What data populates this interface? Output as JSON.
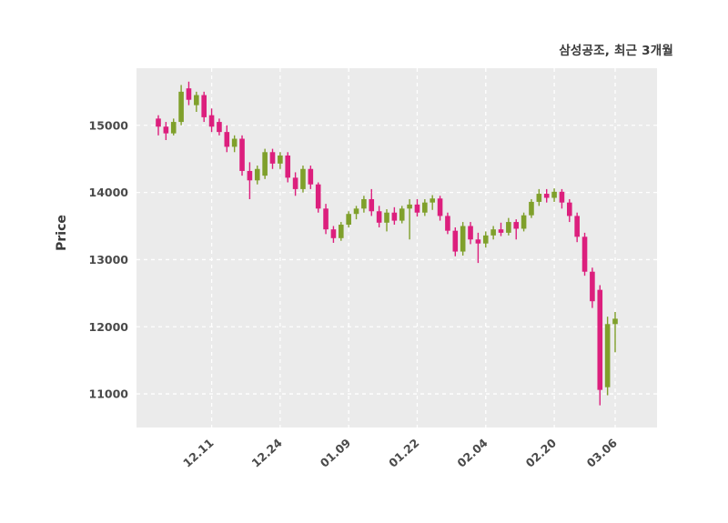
{
  "chart_data": {
    "type": "candlestick",
    "title": "삼성공조, 최근 3개월",
    "ylabel": "Price",
    "yticks": [
      11000,
      12000,
      13000,
      14000,
      15000
    ],
    "ylim": [
      10500,
      15850
    ],
    "xticks": [
      {
        "index": 7,
        "label": "12.11"
      },
      {
        "index": 16,
        "label": "12.24"
      },
      {
        "index": 25,
        "label": "01.09"
      },
      {
        "index": 34,
        "label": "01.22"
      },
      {
        "index": 43,
        "label": "02.04"
      },
      {
        "index": 52,
        "label": "02.20"
      },
      {
        "index": 60,
        "label": "03.06"
      }
    ],
    "colors": {
      "up": "#7fa02b",
      "down": "#dc1f7d",
      "plot_background": "#ebebeb",
      "grid": "#ffffff",
      "figure_background": "#ffffff"
    },
    "grid": {
      "visible": true,
      "style": "dashed"
    },
    "candles": [
      [
        15100,
        15150,
        14850,
        14980
      ],
      [
        14980,
        15050,
        14780,
        14880
      ],
      [
        14880,
        15100,
        14850,
        15050
      ],
      [
        15050,
        15600,
        15000,
        15500
      ],
      [
        15550,
        15650,
        15300,
        15380
      ],
      [
        15300,
        15500,
        15200,
        15450
      ],
      [
        15450,
        15500,
        15050,
        15120
      ],
      [
        15150,
        15250,
        14900,
        14980
      ],
      [
        15050,
        15100,
        14850,
        14900
      ],
      [
        14900,
        15000,
        14600,
        14680
      ],
      [
        14680,
        14850,
        14600,
        14800
      ],
      [
        14800,
        14850,
        14250,
        14320
      ],
      [
        14320,
        14450,
        13900,
        14180
      ],
      [
        14180,
        14400,
        14120,
        14350
      ],
      [
        14250,
        14650,
        14200,
        14600
      ],
      [
        14600,
        14650,
        14350,
        14430
      ],
      [
        14430,
        14600,
        14350,
        14550
      ],
      [
        14550,
        14600,
        14150,
        14220
      ],
      [
        14220,
        14300,
        13950,
        14050
      ],
      [
        14050,
        14400,
        14000,
        14350
      ],
      [
        14350,
        14400,
        14050,
        14120
      ],
      [
        14120,
        14150,
        13700,
        13760
      ],
      [
        13760,
        13830,
        13380,
        13450
      ],
      [
        13450,
        13500,
        13250,
        13320
      ],
      [
        13320,
        13560,
        13280,
        13520
      ],
      [
        13520,
        13720,
        13480,
        13680
      ],
      [
        13680,
        13800,
        13600,
        13760
      ],
      [
        13760,
        13950,
        13700,
        13900
      ],
      [
        13900,
        14050,
        13650,
        13720
      ],
      [
        13720,
        13800,
        13480,
        13550
      ],
      [
        13550,
        13750,
        13420,
        13700
      ],
      [
        13700,
        13780,
        13520,
        13580
      ],
      [
        13580,
        13800,
        13540,
        13760
      ],
      [
        13760,
        13900,
        13300,
        13820
      ],
      [
        13820,
        13900,
        13640,
        13700
      ],
      [
        13700,
        13900,
        13650,
        13850
      ],
      [
        13850,
        13960,
        13740,
        13910
      ],
      [
        13910,
        13950,
        13580,
        13650
      ],
      [
        13650,
        13700,
        13380,
        13430
      ],
      [
        13430,
        13480,
        13050,
        13120
      ],
      [
        13120,
        13560,
        13060,
        13500
      ],
      [
        13500,
        13560,
        13230,
        13300
      ],
      [
        13300,
        13400,
        12950,
        13240
      ],
      [
        13240,
        13420,
        13180,
        13360
      ],
      [
        13360,
        13500,
        13300,
        13450
      ],
      [
        13450,
        13550,
        13350,
        13400
      ],
      [
        13400,
        13620,
        13360,
        13560
      ],
      [
        13560,
        13600,
        13300,
        13460
      ],
      [
        13460,
        13700,
        13420,
        13660
      ],
      [
        13660,
        13900,
        13620,
        13860
      ],
      [
        13860,
        14050,
        13800,
        13980
      ],
      [
        13980,
        14050,
        13850,
        13920
      ],
      [
        13920,
        14060,
        13860,
        14010
      ],
      [
        14010,
        14050,
        13760,
        13850
      ],
      [
        13850,
        13900,
        13560,
        13650
      ],
      [
        13650,
        13700,
        13260,
        13340
      ],
      [
        13340,
        13400,
        12760,
        12820
      ],
      [
        12820,
        12880,
        12280,
        12380
      ],
      [
        12550,
        12620,
        10830,
        11060
      ],
      [
        11100,
        12150,
        10980,
        12040
      ],
      [
        12040,
        12220,
        11620,
        12120
      ]
    ]
  }
}
